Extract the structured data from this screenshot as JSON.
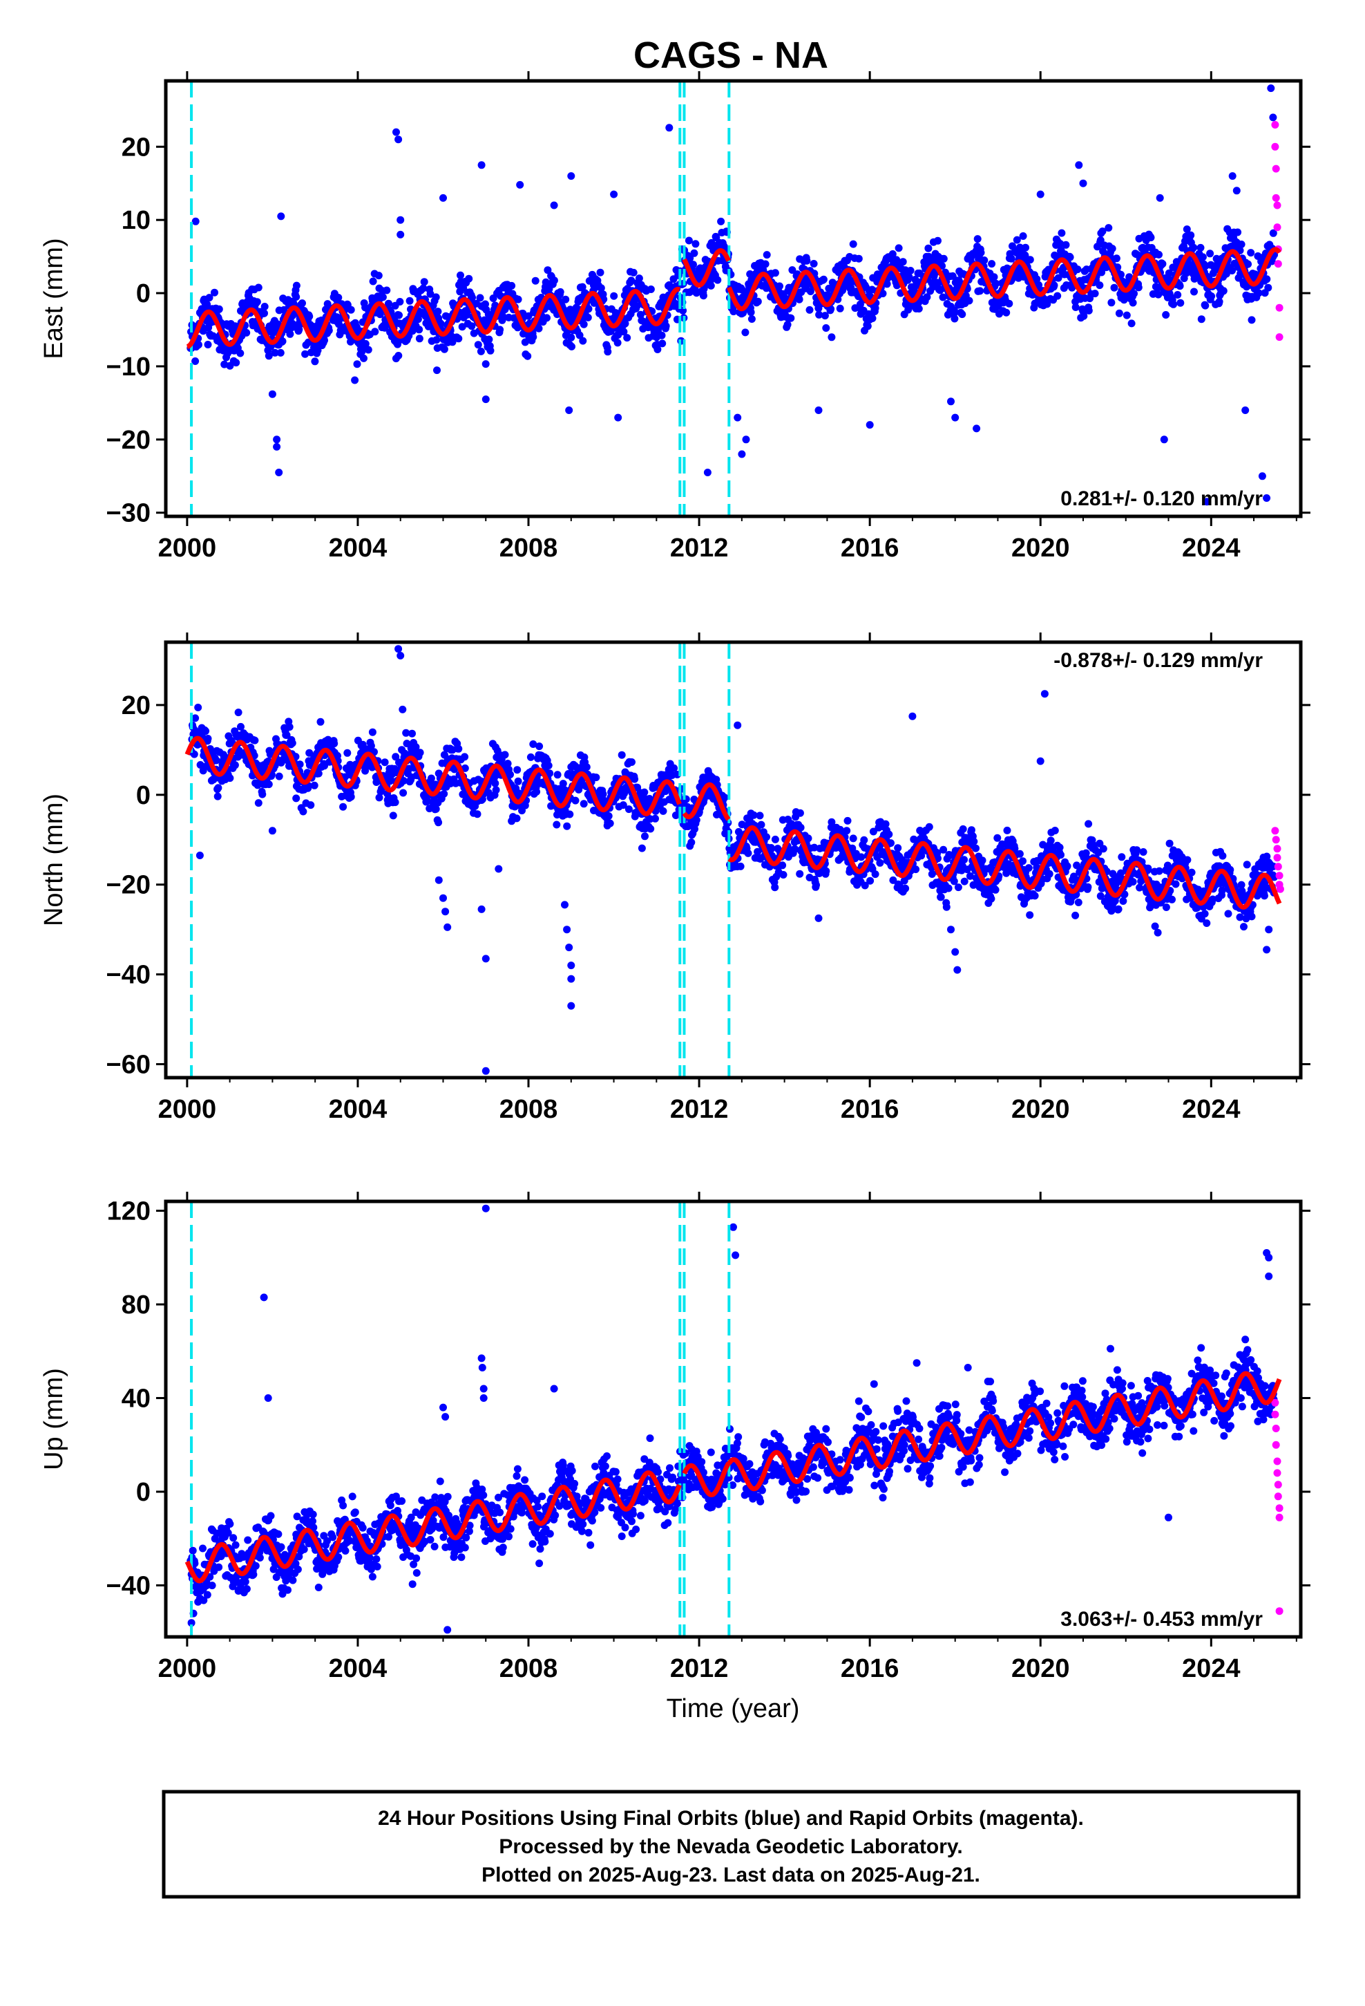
{
  "title": "CAGS - NA",
  "colors": {
    "final_orbits": "#0000ff",
    "rapid_orbits": "#ff00ff",
    "model": "#ff0000",
    "offsets": "#00e5ee",
    "frame": "#000000"
  },
  "footer": {
    "line1": "24 Hour Positions Using Final Orbits (blue) and Rapid Orbits (magenta).",
    "line2": "Processed by the Nevada Geodetic Laboratory.",
    "line3": "Plotted on 2025-Aug-23. Last data on 2025-Aug-21."
  },
  "chart_data": [
    {
      "type": "scatter",
      "panel": "east",
      "ylabel": "East (mm)",
      "xlabel": "",
      "rate_text": "0.281+/- 0.120 mm/yr",
      "rate_position": "bottom-right",
      "xlim": [
        1999.5,
        2026.1
      ],
      "ylim": [
        -30.5,
        29
      ],
      "x_ticks": [
        2000,
        2004,
        2008,
        2012,
        2016,
        2020,
        2024
      ],
      "y_ticks": [
        -30,
        -20,
        -10,
        0,
        10,
        20
      ],
      "y_tick_labels": [
        "−30",
        "−20",
        "−10",
        "0",
        "10",
        "20"
      ],
      "offset_epochs": [
        2000.1,
        2011.55,
        2011.65,
        2012.7
      ],
      "model": {
        "trend": 0.281,
        "annual_amplitude": 2.3,
        "annual_phase": 0.25,
        "segments": [
          {
            "start": 2000.0,
            "end": 2011.55,
            "offset": -5.0
          },
          {
            "start": 2011.65,
            "end": 2012.7,
            "offset": 0.0
          },
          {
            "start": 2012.7,
            "end": 2025.6,
            "offset": -3.5
          }
        ]
      },
      "scatter": 1.7,
      "outliers": [
        [
          2000.2,
          9.8
        ],
        [
          2002.0,
          -13.8
        ],
        [
          2002.1,
          -20
        ],
        [
          2002.1,
          -21
        ],
        [
          2002.15,
          -24.5
        ],
        [
          2002.2,
          10.5
        ],
        [
          2004.9,
          22
        ],
        [
          2004.95,
          21
        ],
        [
          2005.0,
          10
        ],
        [
          2005.0,
          8
        ],
        [
          2006.0,
          13
        ],
        [
          2006.9,
          17.5
        ],
        [
          2007.0,
          -14.5
        ],
        [
          2007.8,
          14.8
        ],
        [
          2008.6,
          12
        ],
        [
          2008.95,
          -16
        ],
        [
          2009.0,
          16
        ],
        [
          2010.0,
          13.5
        ],
        [
          2010.1,
          -17
        ],
        [
          2011.3,
          22.6
        ],
        [
          2011.6,
          6
        ],
        [
          2012.2,
          -24.5
        ],
        [
          2012.9,
          -17
        ],
        [
          2013.0,
          -22
        ],
        [
          2013.1,
          -20
        ],
        [
          2014.8,
          -16
        ],
        [
          2016.0,
          -18
        ],
        [
          2017.9,
          -14.8
        ],
        [
          2018.0,
          -17
        ],
        [
          2018.5,
          -18.5
        ],
        [
          2020.0,
          13.5
        ],
        [
          2020.9,
          17.5
        ],
        [
          2021.0,
          15
        ],
        [
          2022.8,
          13
        ],
        [
          2022.9,
          -20
        ],
        [
          2023.9,
          -28.5
        ],
        [
          2024.5,
          16
        ],
        [
          2024.6,
          14
        ],
        [
          2024.8,
          -16
        ],
        [
          2025.2,
          -25
        ],
        [
          2025.3,
          -28
        ],
        [
          2025.4,
          28
        ],
        [
          2025.45,
          24
        ]
      ],
      "rapid": [
        [
          2025.5,
          23
        ],
        [
          2025.5,
          20
        ],
        [
          2025.52,
          17
        ],
        [
          2025.52,
          13
        ],
        [
          2025.55,
          12
        ],
        [
          2025.55,
          9
        ],
        [
          2025.57,
          6
        ],
        [
          2025.57,
          4
        ],
        [
          2025.6,
          -2
        ],
        [
          2025.6,
          -6
        ]
      ]
    },
    {
      "type": "scatter",
      "panel": "north",
      "ylabel": "North (mm)",
      "xlabel": "",
      "rate_text": "-0.878+/- 0.129 mm/yr",
      "rate_position": "top-right",
      "xlim": [
        1999.5,
        2026.1
      ],
      "ylim": [
        -63,
        34
      ],
      "x_ticks": [
        2000,
        2004,
        2008,
        2012,
        2016,
        2020,
        2024
      ],
      "y_ticks": [
        -60,
        -40,
        -20,
        0,
        20
      ],
      "y_tick_labels": [
        "−60",
        "−40",
        "−20",
        "0",
        "20"
      ],
      "offset_epochs": [
        2000.1,
        2011.55,
        2011.65,
        2012.7
      ],
      "model": {
        "trend": -0.878,
        "annual_amplitude": 3.8,
        "annual_phase": 0.0,
        "segments": [
          {
            "start": 2000.0,
            "end": 2011.55,
            "offset": 9.0
          },
          {
            "start": 2011.65,
            "end": 2012.7,
            "offset": 9.2
          },
          {
            "start": 2012.7,
            "end": 2025.6,
            "offset": 0.5
          }
        ]
      },
      "scatter": 2.5,
      "outliers": [
        [
          2000.3,
          -13.5
        ],
        [
          2002.0,
          -8
        ],
        [
          2004.95,
          32.5
        ],
        [
          2005.0,
          31
        ],
        [
          2005.05,
          19
        ],
        [
          2005.9,
          -19
        ],
        [
          2006.0,
          -23
        ],
        [
          2006.05,
          -26
        ],
        [
          2006.1,
          -29.5
        ],
        [
          2006.9,
          -25.5
        ],
        [
          2007.0,
          -36.5
        ],
        [
          2007.0,
          -61.5
        ],
        [
          2007.3,
          -16.5
        ],
        [
          2008.85,
          -24.5
        ],
        [
          2008.9,
          -30
        ],
        [
          2008.95,
          -34
        ],
        [
          2009.0,
          -38
        ],
        [
          2009.0,
          -41
        ],
        [
          2009.0,
          -47
        ],
        [
          2012.9,
          15.5
        ],
        [
          2014.8,
          -27.5
        ],
        [
          2017.0,
          17.5
        ],
        [
          2017.8,
          -25
        ],
        [
          2017.9,
          -30
        ],
        [
          2018.0,
          -35
        ],
        [
          2018.05,
          -39
        ],
        [
          2020.1,
          22.5
        ],
        [
          2020.0,
          7.5
        ],
        [
          2024.4,
          -26.5
        ],
        [
          2025.3,
          -34.5
        ],
        [
          2025.35,
          -30
        ]
      ],
      "rapid": [
        [
          2025.5,
          -8
        ],
        [
          2025.52,
          -10
        ],
        [
          2025.55,
          -12
        ],
        [
          2025.55,
          -14
        ],
        [
          2025.57,
          -16
        ],
        [
          2025.6,
          -18
        ],
        [
          2025.6,
          -20
        ],
        [
          2025.62,
          -21
        ]
      ]
    },
    {
      "type": "scatter",
      "panel": "up",
      "ylabel": "Up (mm)",
      "xlabel": "Time (year)",
      "rate_text": "3.063+/- 0.453 mm/yr",
      "rate_position": "bottom-right",
      "xlim": [
        1999.5,
        2026.1
      ],
      "ylim": [
        -62,
        124
      ],
      "x_ticks": [
        2000,
        2004,
        2008,
        2012,
        2016,
        2020,
        2024
      ],
      "y_ticks": [
        -40,
        0,
        40,
        80,
        120
      ],
      "y_tick_labels": [
        "−40",
        "0",
        "40",
        "80",
        "120"
      ],
      "offset_epochs": [
        2000.1,
        2011.55,
        2011.65,
        2012.7
      ],
      "model": {
        "trend": 3.063,
        "annual_amplitude": 7.0,
        "annual_phase": 0.55,
        "segments": [
          {
            "start": 2000.0,
            "end": 2011.55,
            "offset": -32.0
          },
          {
            "start": 2011.65,
            "end": 2012.7,
            "offset": -32.0
          },
          {
            "start": 2012.7,
            "end": 2025.6,
            "offset": -32.5
          }
        ]
      },
      "scatter": 5.5,
      "outliers": [
        [
          2000.1,
          -56
        ],
        [
          2000.15,
          -52
        ],
        [
          2001.8,
          83
        ],
        [
          2001.9,
          40
        ],
        [
          2006.1,
          -59
        ],
        [
          2006.0,
          36
        ],
        [
          2006.05,
          32
        ],
        [
          2006.9,
          57
        ],
        [
          2006.92,
          53
        ],
        [
          2006.95,
          44
        ],
        [
          2006.95,
          40
        ],
        [
          2007.0,
          121
        ],
        [
          2008.6,
          44
        ],
        [
          2012.8,
          113
        ],
        [
          2012.85,
          101
        ],
        [
          2016.1,
          46
        ],
        [
          2017.1,
          55
        ],
        [
          2018.3,
          53
        ],
        [
          2021.8,
          52
        ],
        [
          2022.9,
          46
        ],
        [
          2023.0,
          -11
        ],
        [
          2024.8,
          65
        ],
        [
          2025.3,
          102
        ],
        [
          2025.35,
          100
        ],
        [
          2025.35,
          92
        ]
      ],
      "rapid": [
        [
          2025.5,
          38
        ],
        [
          2025.5,
          33
        ],
        [
          2025.52,
          27
        ],
        [
          2025.52,
          20
        ],
        [
          2025.55,
          13
        ],
        [
          2025.55,
          8
        ],
        [
          2025.57,
          3
        ],
        [
          2025.57,
          -2
        ],
        [
          2025.6,
          -7
        ],
        [
          2025.6,
          -11
        ],
        [
          2025.6,
          -51
        ]
      ]
    }
  ]
}
